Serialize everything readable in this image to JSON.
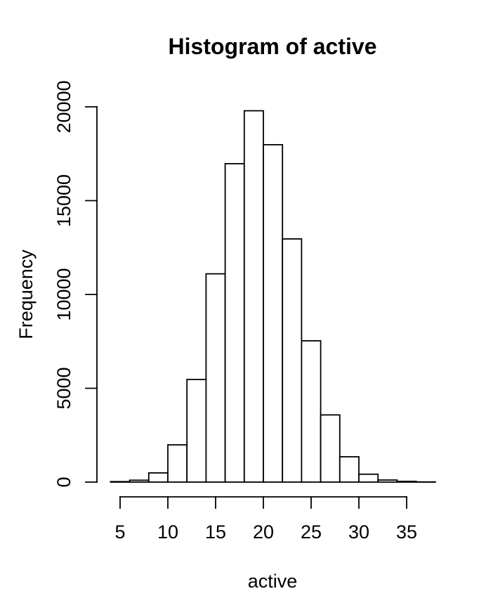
{
  "figure": {
    "background": "#ffffff"
  },
  "chart_data": {
    "type": "bar",
    "variant": "histogram",
    "title": "Histogram of active",
    "xlabel": "active",
    "ylabel": "Frequency",
    "bin_start": 4,
    "bin_width": 2,
    "bin_edges": [
      4,
      6,
      8,
      10,
      12,
      14,
      16,
      18,
      20,
      22,
      24,
      26,
      28,
      30,
      32,
      34,
      36,
      38
    ],
    "counts": [
      25,
      100,
      490,
      1985,
      5470,
      11100,
      16970,
      19790,
      17980,
      12960,
      7530,
      3580,
      1350,
      420,
      110,
      40,
      10
    ],
    "x_ticks": [
      5,
      10,
      15,
      20,
      25,
      30,
      35
    ],
    "y_ticks": [
      0,
      5000,
      10000,
      15000,
      20000
    ],
    "xlim": [
      4,
      38
    ],
    "ylim": [
      0,
      20000
    ],
    "grid": false,
    "legend": "none",
    "bar_fill": "#ffffff",
    "bar_stroke": "#000000",
    "axis_color": "#000000",
    "text_color": "#000000"
  }
}
